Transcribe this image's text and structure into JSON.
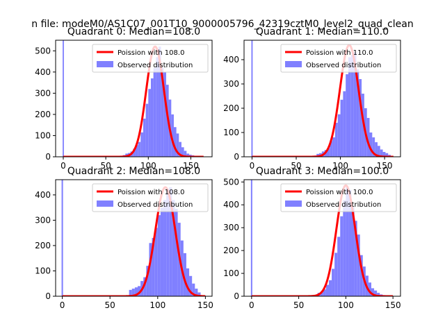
{
  "figure": {
    "suptitle": "n file: modeM0/AS1C07_001T10_9000005796_42319cztM0_level2_quad_clean"
  },
  "chart_data": [
    {
      "type": "bar",
      "title": "Quadrant 0: Median=108.0",
      "xlim": [
        -9,
        175
      ],
      "ylim": [
        0,
        550
      ],
      "xticks": [
        0,
        50,
        100,
        150
      ],
      "yticks": [
        0,
        100,
        200,
        300,
        400,
        500
      ],
      "legend": {
        "placement": "top-right",
        "line": "Poission with 108.0",
        "bars": "Observed distribution"
      },
      "spike": {
        "x": 0,
        "value": 550
      },
      "hist_bins": [
        70,
        73,
        76,
        79,
        82,
        85,
        88,
        91,
        94,
        97,
        100,
        103,
        106,
        109,
        112,
        115,
        118,
        121,
        124,
        127,
        130,
        133,
        136,
        139,
        142,
        145,
        148,
        151,
        154,
        157,
        160
      ],
      "hist_values": [
        8,
        15,
        18,
        25,
        38,
        55,
        70,
        115,
        180,
        250,
        320,
        370,
        420,
        470,
        520,
        420,
        400,
        340,
        270,
        200,
        140,
        110,
        70,
        45,
        28,
        15,
        10,
        7,
        3,
        2
      ],
      "poisson": {
        "mean": 108.0,
        "peak": 520,
        "sigma": 10.4,
        "x_start": 0,
        "x_end": 165
      }
    },
    {
      "type": "bar",
      "title": "Quadrant 1: Median=110.0",
      "xlim": [
        -9,
        168
      ],
      "ylim": [
        0,
        480
      ],
      "xticks": [
        0,
        50,
        100,
        150
      ],
      "yticks": [
        0,
        100,
        200,
        300,
        400
      ],
      "legend": {
        "placement": "top-right",
        "line": "Poission with 110.0",
        "bars": "Observed distribution"
      },
      "spike": {
        "x": 0,
        "value": 480
      },
      "hist_bins": [
        70,
        73,
        76,
        79,
        82,
        85,
        88,
        91,
        94,
        97,
        100,
        103,
        106,
        109,
        112,
        115,
        118,
        121,
        124,
        127,
        130,
        133,
        136,
        139,
        142,
        145,
        148,
        151,
        154,
        157
      ],
      "hist_values": [
        5,
        12,
        15,
        22,
        28,
        35,
        65,
        80,
        140,
        175,
        235,
        270,
        340,
        410,
        420,
        430,
        360,
        320,
        260,
        200,
        160,
        100,
        80,
        60,
        45,
        30,
        20,
        15,
        8
      ],
      "poisson": {
        "mean": 110.0,
        "peak": 460,
        "sigma": 10.5,
        "x_start": 0,
        "x_end": 160
      }
    },
    {
      "type": "bar",
      "title": "Quadrant 2: Median=108.0",
      "xlim": [
        -7,
        157
      ],
      "ylim": [
        0,
        460
      ],
      "xticks": [
        0,
        50,
        100,
        150
      ],
      "yticks": [
        0,
        100,
        200,
        300,
        400
      ],
      "legend": {
        "placement": "top-right",
        "line": "Poission with 108.0",
        "bars": "Observed distribution"
      },
      "spike": {
        "x": 0,
        "value": 460
      },
      "hist_bins": [
        70,
        73,
        76,
        79,
        82,
        85,
        88,
        91,
        94,
        97,
        100,
        103,
        106,
        109,
        112,
        115,
        118,
        121,
        124,
        127,
        130,
        133,
        136,
        139,
        142,
        145
      ],
      "hist_values": [
        25,
        30,
        35,
        40,
        60,
        75,
        120,
        210,
        230,
        270,
        320,
        350,
        380,
        420,
        430,
        380,
        345,
        290,
        220,
        170,
        110,
        80,
        50,
        30,
        15
      ],
      "poisson": {
        "mean": 108.0,
        "peak": 430,
        "sigma": 10.4,
        "x_start": 0,
        "x_end": 150
      }
    },
    {
      "type": "bar",
      "title": "Quadrant 3: Median=100.0",
      "xlim": [
        -8,
        158
      ],
      "ylim": [
        0,
        510
      ],
      "xticks": [
        0,
        50,
        100,
        150
      ],
      "yticks": [
        0,
        100,
        200,
        300,
        400,
        500
      ],
      "legend": {
        "placement": "top-right",
        "line": "Poission with 100.0",
        "bars": "Observed distribution"
      },
      "spike": {
        "x": 0,
        "value": 510
      },
      "hist_bins": [
        70,
        73,
        76,
        79,
        82,
        85,
        88,
        91,
        94,
        97,
        100,
        103,
        106,
        109,
        112,
        115,
        118,
        121,
        124,
        127,
        130,
        133,
        136,
        139,
        142
      ],
      "hist_values": [
        15,
        20,
        30,
        50,
        70,
        120,
        190,
        260,
        350,
        420,
        480,
        465,
        390,
        330,
        270,
        180,
        130,
        90,
        60,
        35,
        25,
        15,
        8,
        5
      ],
      "poisson": {
        "mean": 100.0,
        "peak": 485,
        "sigma": 10.0,
        "x_start": 0,
        "x_end": 150
      }
    }
  ],
  "colors": {
    "bars": "#8080ff",
    "spike": "#8080ff",
    "poisson_line": "#ff0000",
    "axes": "#000000",
    "text": "#000000",
    "legend_border": "#cccccc"
  }
}
